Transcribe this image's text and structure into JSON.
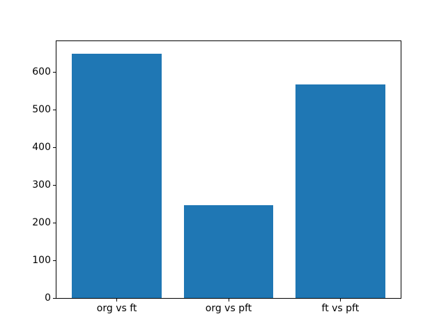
{
  "figure": {
    "background": "#ffffff",
    "bar_color": "#1f77b4",
    "axis_color": "#000000",
    "text_color": "#000000"
  },
  "chart_data": {
    "type": "bar",
    "title": "",
    "xlabel": "",
    "ylabel": "",
    "categories": [
      "org vs ft",
      "org vs pft",
      "ft vs pft"
    ],
    "values": [
      650,
      247,
      568
    ],
    "yticks": [
      0,
      100,
      200,
      300,
      400,
      500,
      600
    ],
    "ylim": [
      0,
      682.5
    ],
    "bar_width_fraction": 0.8,
    "grid": false,
    "legend": null
  }
}
